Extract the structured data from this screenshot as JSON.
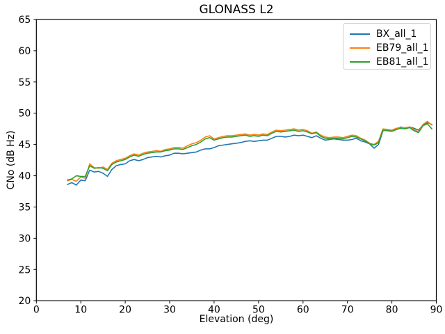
{
  "chart_data": {
    "type": "line",
    "title": "GLONASS L2",
    "xlabel": "Elevation (deg)",
    "ylabel": "CNo (dB Hz)",
    "xlim": [
      0,
      90
    ],
    "ylim": [
      20,
      65
    ],
    "xticks": [
      0,
      10,
      20,
      30,
      40,
      50,
      60,
      70,
      80,
      90
    ],
    "yticks": [
      20,
      25,
      30,
      35,
      40,
      45,
      50,
      55,
      60,
      65
    ],
    "grid": false,
    "legend_position": "upper right",
    "x": [
      7,
      8,
      9,
      10,
      11,
      12,
      13,
      14,
      15,
      16,
      17,
      18,
      19,
      20,
      21,
      22,
      23,
      24,
      25,
      26,
      27,
      28,
      29,
      30,
      31,
      32,
      33,
      34,
      35,
      36,
      37,
      38,
      39,
      40,
      41,
      42,
      43,
      44,
      45,
      46,
      47,
      48,
      49,
      50,
      51,
      52,
      53,
      54,
      55,
      56,
      57,
      58,
      59,
      60,
      61,
      62,
      63,
      64,
      65,
      66,
      67,
      68,
      69,
      70,
      71,
      72,
      73,
      74,
      75,
      76,
      77,
      78,
      79,
      80,
      81,
      82,
      83,
      84,
      85,
      86,
      87,
      88,
      89
    ],
    "series": [
      {
        "name": "BX_all_1",
        "color": "#1f77b4",
        "values": [
          38.6,
          38.9,
          38.5,
          39.3,
          39.2,
          40.9,
          40.6,
          40.7,
          40.4,
          39.9,
          41.0,
          41.6,
          41.8,
          41.9,
          42.4,
          42.6,
          42.4,
          42.6,
          42.9,
          43.0,
          43.1,
          43.0,
          43.2,
          43.3,
          43.6,
          43.6,
          43.5,
          43.6,
          43.7,
          43.8,
          44.1,
          44.3,
          44.3,
          44.5,
          44.8,
          44.9,
          45.0,
          45.1,
          45.2,
          45.3,
          45.5,
          45.6,
          45.5,
          45.6,
          45.7,
          45.7,
          46.0,
          46.3,
          46.3,
          46.2,
          46.3,
          46.5,
          46.4,
          46.5,
          46.3,
          46.1,
          46.4,
          46.0,
          45.7,
          45.8,
          45.9,
          45.8,
          45.7,
          45.7,
          45.8,
          46.0,
          45.6,
          45.4,
          45.1,
          44.4,
          45.0,
          47.2,
          47.3,
          47.2,
          47.5,
          47.8,
          47.6,
          47.8,
          47.6,
          47.3,
          48.1,
          48.5,
          48.2
        ]
      },
      {
        "name": "EB79_all_1",
        "color": "#ff7f0e",
        "values": [
          39.2,
          39.4,
          39.1,
          39.8,
          39.6,
          41.9,
          41.3,
          41.2,
          41.4,
          41.0,
          42.0,
          42.4,
          42.6,
          42.8,
          43.2,
          43.5,
          43.3,
          43.6,
          43.8,
          43.9,
          44.0,
          43.9,
          44.2,
          44.3,
          44.5,
          44.5,
          44.4,
          44.8,
          45.1,
          45.3,
          45.7,
          46.2,
          46.4,
          45.9,
          46.1,
          46.3,
          46.4,
          46.4,
          46.5,
          46.6,
          46.7,
          46.5,
          46.6,
          46.5,
          46.7,
          46.6,
          47.0,
          47.3,
          47.2,
          47.3,
          47.4,
          47.5,
          47.3,
          47.4,
          47.2,
          46.8,
          47.0,
          46.5,
          46.2,
          46.1,
          46.2,
          46.2,
          46.1,
          46.3,
          46.5,
          46.4,
          46.0,
          45.7,
          45.2,
          45.0,
          45.5,
          47.5,
          47.4,
          47.3,
          47.6,
          47.7,
          47.7,
          47.8,
          47.4,
          47.0,
          48.2,
          48.7,
          48.1
        ]
      },
      {
        "name": "EB81_all_1",
        "color": "#2ca02c",
        "values": [
          39.3,
          39.5,
          40.0,
          39.9,
          39.9,
          41.6,
          41.2,
          41.3,
          41.2,
          40.8,
          41.8,
          42.2,
          42.4,
          42.6,
          43.0,
          43.3,
          43.1,
          43.4,
          43.6,
          43.7,
          43.8,
          43.8,
          44.0,
          44.1,
          44.3,
          44.3,
          44.2,
          44.5,
          44.8,
          45.0,
          45.4,
          45.9,
          46.1,
          45.7,
          45.9,
          46.1,
          46.2,
          46.2,
          46.3,
          46.4,
          46.5,
          46.3,
          46.4,
          46.3,
          46.5,
          46.4,
          46.8,
          47.1,
          47.0,
          47.1,
          47.2,
          47.3,
          47.1,
          47.2,
          47.0,
          46.7,
          46.9,
          46.3,
          46.0,
          45.9,
          46.0,
          46.0,
          45.9,
          46.1,
          46.3,
          46.2,
          45.9,
          45.6,
          45.1,
          44.9,
          45.3,
          47.3,
          47.2,
          47.1,
          47.4,
          47.6,
          47.5,
          47.7,
          47.2,
          46.9,
          48.0,
          48.3,
          47.5
        ]
      }
    ]
  }
}
